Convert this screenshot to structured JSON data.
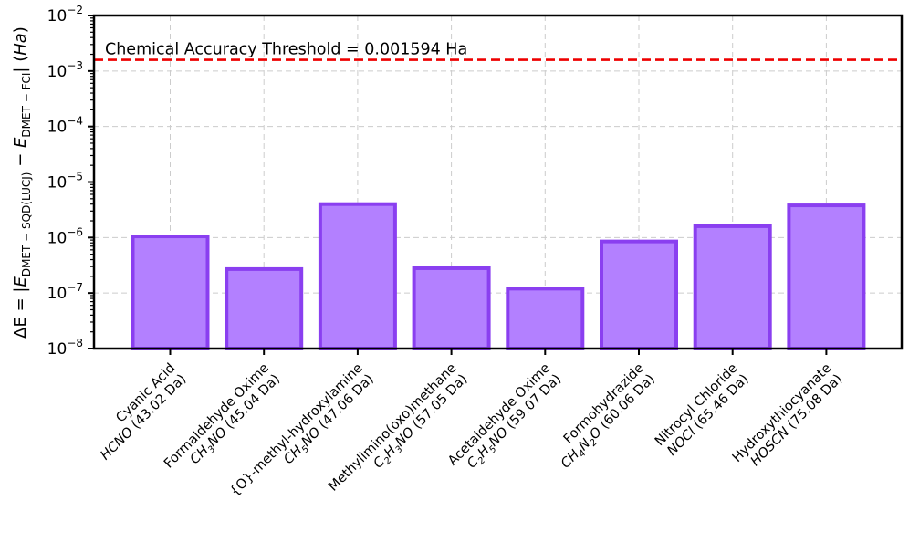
{
  "chart_data": {
    "type": "bar",
    "yscale": "log",
    "ylim": [
      1e-08,
      0.01
    ],
    "grid": true,
    "ylabel": "ΔE = |E_DMET−SQD(LUCJ) − E_DMET−FCI| (Ha)",
    "yticks": [
      {
        "value": 1e-08,
        "label": "10^-8"
      },
      {
        "value": 1e-07,
        "label": "10^-7"
      },
      {
        "value": 1e-06,
        "label": "10^-6"
      },
      {
        "value": 1e-05,
        "label": "10^-5"
      },
      {
        "value": 0.0001,
        "label": "10^-4"
      },
      {
        "value": 0.001,
        "label": "10^-3"
      },
      {
        "value": 0.01,
        "label": "10^-2"
      }
    ],
    "categories": [
      {
        "name": "Cyanic Acid",
        "formula": "HCNO",
        "mass": "(43.02 Da)"
      },
      {
        "name": "Formaldehyde Oxime",
        "formula": "CH3NO",
        "mass": "(45.04 Da)"
      },
      {
        "name": "{O}-methyl-hydroxylamine",
        "formula": "CH5NO",
        "mass": "(47.06 Da)"
      },
      {
        "name": "Methylimino(oxo)methane",
        "formula": "C2H3NO",
        "mass": "(57.05 Da)"
      },
      {
        "name": "Acetaldehyde Oxime",
        "formula": "C2H5NO",
        "mass": "(59.07 Da)"
      },
      {
        "name": "Formohydrazide",
        "formula": "CH4N2O",
        "mass": "(60.06 Da)"
      },
      {
        "name": "Nitrocyl Chloride",
        "formula": "NOCl",
        "mass": "(65.46 Da)"
      },
      {
        "name": "Hydroxythiocyanate",
        "formula": "HOSCN",
        "mass": "(75.08 Da)"
      }
    ],
    "values": [
      1.05e-06,
      2.7e-07,
      4e-06,
      2.8e-07,
      1.2e-07,
      8.5e-07,
      1.6e-06,
      3.8e-06
    ],
    "threshold": {
      "value": 0.001594,
      "label": "Chemical Accuracy Threshold = 0.001594 Ha"
    },
    "colors": {
      "bar_fill": "#b380ff",
      "bar_edge": "#8a3ff0",
      "threshold": "#ee0000",
      "grid": "#cccccc"
    }
  }
}
